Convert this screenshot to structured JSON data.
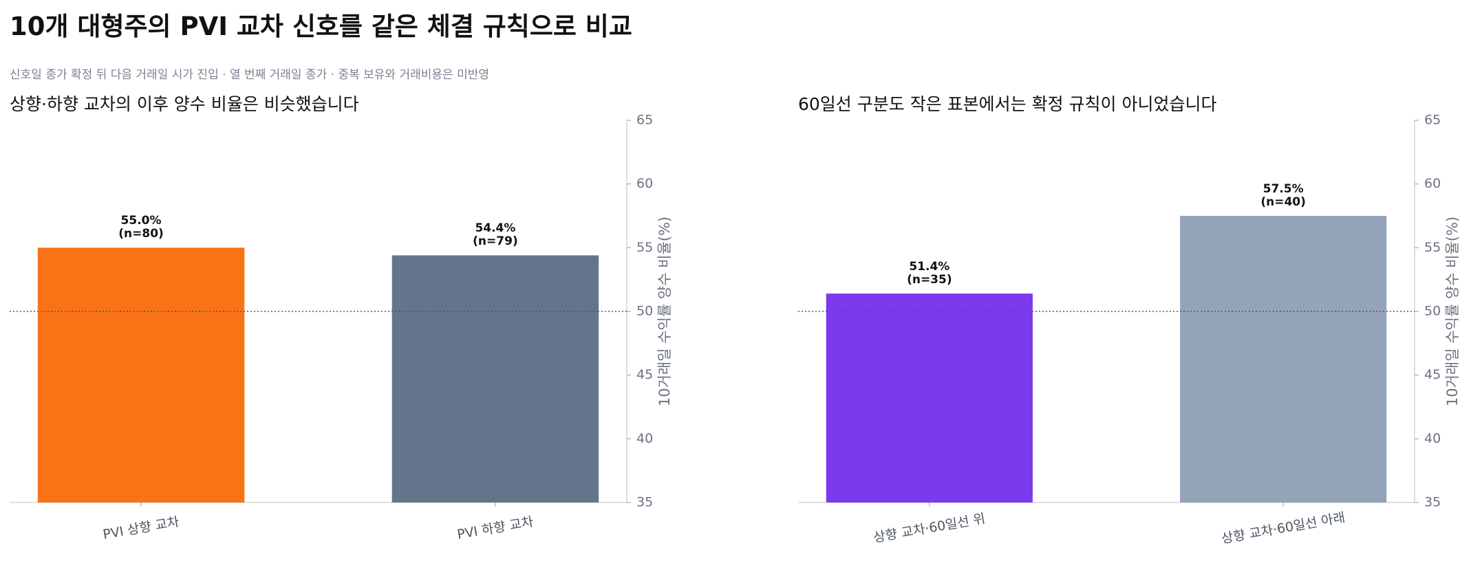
{
  "title": "10개 대형주의 PVI 교차 신호를 같은 체결 규칙으로 비교",
  "subtitle": "신호일 종가 확정 뒤 다음 거래일 시가 진입 · 열 번째 거래일 종가 · 중복 보유와 거래비용은 미반영",
  "chart_data": [
    {
      "type": "bar",
      "title": "상향·하향 교차의 이후 양수 비율은 비슷했습니다",
      "categories": [
        "PVI 상향 교차",
        "PVI 하향 교차"
      ],
      "values": [
        55.0,
        54.4
      ],
      "value_labels": [
        "55.0%\n(n=80)",
        "54.4%\n(n=79)"
      ],
      "colors": [
        "#f97316",
        "#64748b"
      ],
      "ylabel": "10거래일 수익률 양수 비율(%)",
      "ylim": [
        35,
        65
      ],
      "yticks": [
        35,
        40,
        45,
        50,
        55,
        60,
        65
      ],
      "reference_line": 50
    },
    {
      "type": "bar",
      "title": "60일선 구분도 작은 표본에서는 확정 규칙이 아니었습니다",
      "categories": [
        "상향 교차·60일선 위",
        "상향 교차·60일선 아래"
      ],
      "values": [
        51.4,
        57.5
      ],
      "value_labels": [
        "51.4%\n(n=35)",
        "57.5%\n(n=40)"
      ],
      "colors": [
        "#7c3aed",
        "#94a3b8"
      ],
      "ylabel": "10거래일 수익률 양수 비율(%)",
      "ylim": [
        35,
        65
      ],
      "yticks": [
        35,
        40,
        45,
        50,
        55,
        60,
        65
      ],
      "reference_line": 50
    }
  ]
}
